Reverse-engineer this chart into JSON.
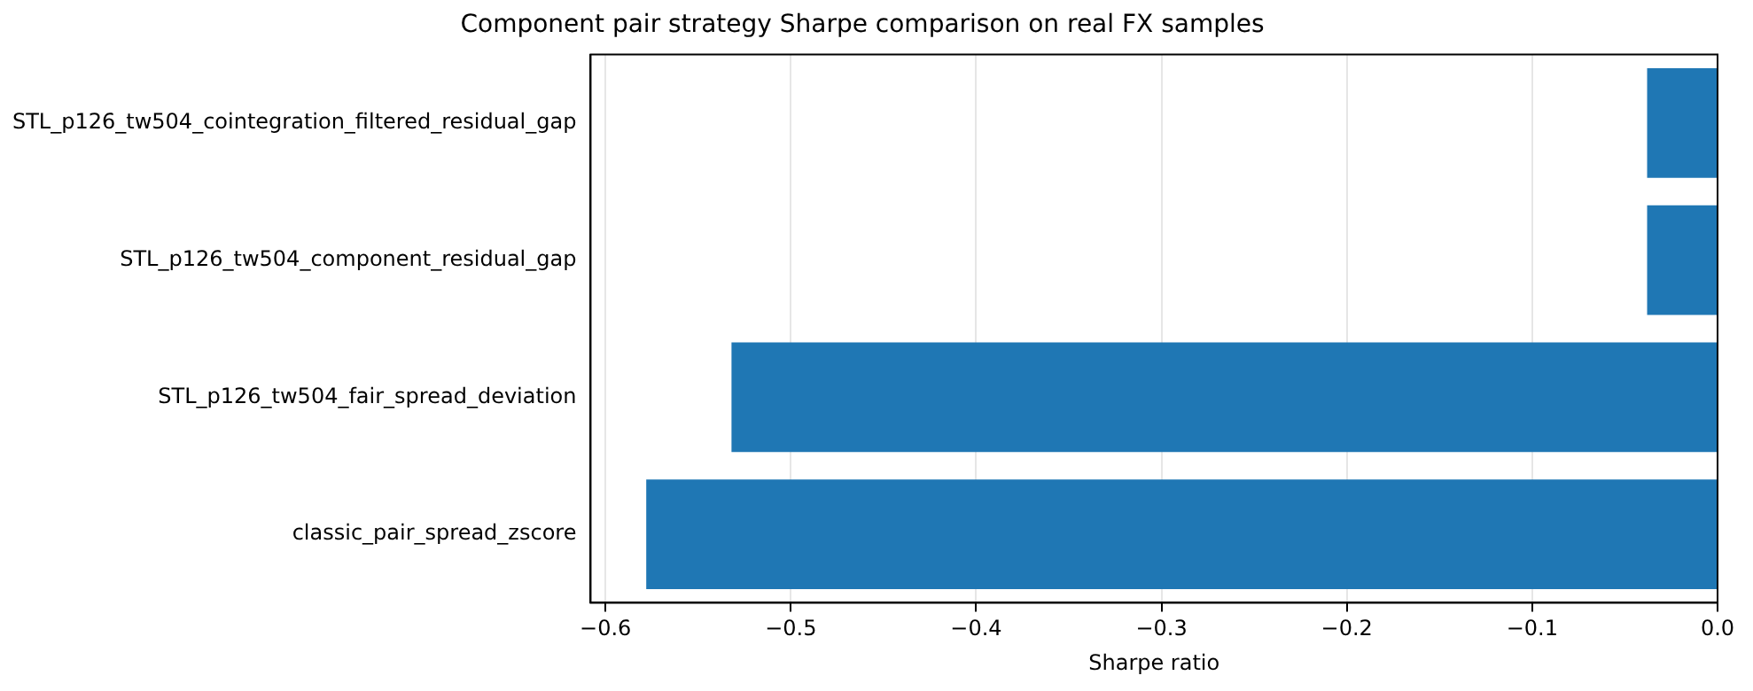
{
  "chart_data": {
    "type": "bar",
    "orientation": "horizontal",
    "title": "Component pair strategy Sharpe comparison on real FX samples",
    "xlabel": "Sharpe ratio",
    "categories": [
      "STL_p126_tw504_cointegration_filtered_residual_gap",
      "STL_p126_tw504_component_residual_gap",
      "STL_p126_tw504_fair_spread_deviation",
      "classic_pair_spread_zscore"
    ],
    "values": [
      -0.038,
      -0.038,
      -0.532,
      -0.578
    ],
    "color": "#1f77b4",
    "xlim": [
      -0.608,
      0
    ],
    "xticks": [
      {
        "value": -0.6,
        "label": "−0.6"
      },
      {
        "value": -0.5,
        "label": "−0.5"
      },
      {
        "value": -0.4,
        "label": "−0.4"
      },
      {
        "value": -0.3,
        "label": "−0.3"
      },
      {
        "value": -0.2,
        "label": "−0.2"
      },
      {
        "value": -0.1,
        "label": "−0.1"
      },
      {
        "value": 0,
        "label": "0.0"
      }
    ],
    "grid": "x"
  }
}
